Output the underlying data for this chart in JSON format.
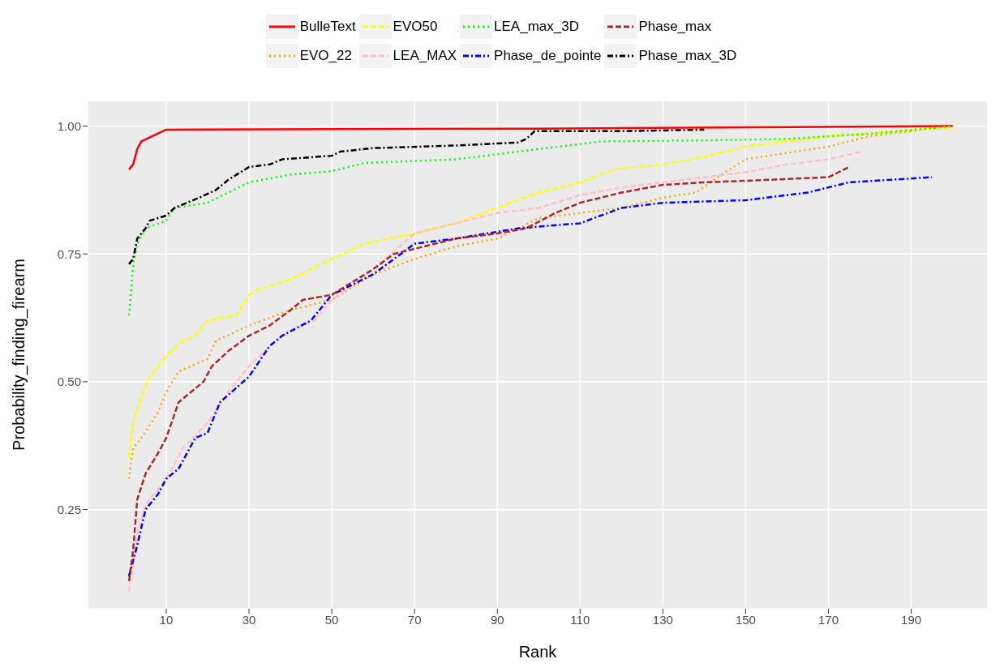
{
  "chart_data": {
    "type": "line",
    "xlabel": "Rank",
    "ylabel": "Probability_finding_firearm",
    "xlim": [
      -9,
      208.5
    ],
    "ylim": [
      0.056,
      1.05
    ],
    "xticks": [
      10,
      30,
      50,
      70,
      90,
      110,
      130,
      150,
      170,
      190
    ],
    "yticks": [
      {
        "value": 0.25,
        "label": "0.25"
      },
      {
        "value": 0.5,
        "label": "0.50"
      },
      {
        "value": 0.75,
        "label": "0.75"
      },
      {
        "value": 1,
        "label": "1.00"
      }
    ],
    "grid": true,
    "legend": "top",
    "series": [
      {
        "name": "BulleText",
        "color": "#ff0000",
        "line_style": "solid",
        "x": [
          1,
          2,
          3,
          4,
          10,
          100,
          200
        ],
        "values": [
          0.915,
          0.925,
          0.955,
          0.97,
          0.993,
          0.995,
          1.0
        ]
      },
      {
        "name": "EVO_22",
        "color": "#ffa500",
        "line_style": "dotted",
        "x": [
          1,
          2,
          4,
          8,
          10,
          13,
          20,
          22,
          30,
          40,
          50,
          56,
          60,
          70,
          80,
          90,
          100,
          120,
          130,
          138,
          145,
          150,
          170,
          180,
          200
        ],
        "values": [
          0.31,
          0.37,
          0.39,
          0.44,
          0.48,
          0.52,
          0.545,
          0.58,
          0.61,
          0.64,
          0.66,
          0.69,
          0.71,
          0.74,
          0.765,
          0.78,
          0.82,
          0.84,
          0.86,
          0.87,
          0.91,
          0.935,
          0.96,
          0.98,
          1.0
        ]
      },
      {
        "name": "EVO50",
        "color": "#ffff00",
        "line_style": "dashed",
        "x": [
          1,
          2,
          4,
          6,
          10,
          13,
          17,
          20,
          27,
          30,
          32,
          40,
          45,
          50,
          58,
          70,
          80,
          90,
          100,
          110,
          118,
          130,
          140,
          150,
          170,
          200
        ],
        "values": [
          0.35,
          0.42,
          0.47,
          0.51,
          0.55,
          0.575,
          0.59,
          0.62,
          0.63,
          0.67,
          0.68,
          0.7,
          0.72,
          0.74,
          0.77,
          0.79,
          0.81,
          0.84,
          0.87,
          0.89,
          0.915,
          0.925,
          0.94,
          0.96,
          0.98,
          0.997
        ]
      },
      {
        "name": "LEA_MAX",
        "color": "#ffc0cb",
        "line_style": "dashed",
        "x": [
          1,
          3,
          5,
          10,
          14,
          20,
          25,
          30,
          35,
          40,
          46,
          50,
          60,
          70,
          80,
          90,
          100,
          110,
          120,
          130,
          140,
          150,
          160,
          170,
          178
        ],
        "values": [
          0.09,
          0.2,
          0.26,
          0.31,
          0.37,
          0.42,
          0.48,
          0.53,
          0.57,
          0.6,
          0.62,
          0.66,
          0.72,
          0.79,
          0.81,
          0.83,
          0.84,
          0.865,
          0.88,
          0.89,
          0.9,
          0.91,
          0.925,
          0.935,
          0.95
        ]
      },
      {
        "name": "LEA_max_3D",
        "color": "#00ff00",
        "line_style": "dotted",
        "x": [
          1,
          2,
          3,
          5,
          10,
          12,
          20,
          25,
          30,
          40,
          50,
          58,
          80,
          100,
          115,
          140,
          160,
          180,
          200
        ],
        "values": [
          0.63,
          0.73,
          0.77,
          0.8,
          0.815,
          0.84,
          0.85,
          0.87,
          0.89,
          0.905,
          0.912,
          0.928,
          0.935,
          0.955,
          0.97,
          0.972,
          0.975,
          0.985,
          1.0
        ]
      },
      {
        "name": "Phase_de_pointe",
        "color": "#0000ff",
        "line_style": "dashdot",
        "x": [
          1,
          3,
          5,
          8,
          10,
          13,
          15,
          17,
          20,
          23,
          30,
          35,
          38,
          45,
          50,
          60,
          70,
          80,
          95,
          110,
          120,
          130,
          150,
          165,
          175,
          195
        ],
        "values": [
          0.12,
          0.18,
          0.25,
          0.28,
          0.31,
          0.33,
          0.36,
          0.39,
          0.4,
          0.46,
          0.51,
          0.57,
          0.59,
          0.62,
          0.67,
          0.71,
          0.77,
          0.78,
          0.8,
          0.81,
          0.84,
          0.85,
          0.855,
          0.87,
          0.89,
          0.9
        ]
      },
      {
        "name": "Phase_max",
        "color": "#a52a2a",
        "line_style": "dashed",
        "x": [
          1,
          2,
          3,
          5,
          8,
          10,
          13,
          16,
          19,
          21,
          25,
          30,
          35,
          40,
          43,
          50,
          60,
          65,
          70,
          80,
          90,
          97,
          104,
          110,
          120,
          130,
          140,
          150,
          170,
          175
        ],
        "values": [
          0.11,
          0.17,
          0.27,
          0.32,
          0.36,
          0.39,
          0.46,
          0.48,
          0.5,
          0.53,
          0.56,
          0.59,
          0.61,
          0.64,
          0.66,
          0.67,
          0.72,
          0.75,
          0.76,
          0.78,
          0.79,
          0.8,
          0.83,
          0.85,
          0.87,
          0.885,
          0.89,
          0.893,
          0.9,
          0.92
        ]
      },
      {
        "name": "Phase_max_3D",
        "color": "#000000",
        "line_style": "dashdot",
        "x": [
          1,
          2,
          3,
          5,
          6,
          10,
          12,
          18,
          22,
          25,
          30,
          35,
          38,
          50,
          52,
          60,
          80,
          95,
          97,
          99,
          120,
          140
        ],
        "values": [
          0.73,
          0.74,
          0.78,
          0.8,
          0.815,
          0.825,
          0.84,
          0.86,
          0.875,
          0.895,
          0.92,
          0.925,
          0.935,
          0.942,
          0.95,
          0.957,
          0.962,
          0.968,
          0.975,
          0.99,
          0.99,
          0.993
        ]
      }
    ]
  }
}
